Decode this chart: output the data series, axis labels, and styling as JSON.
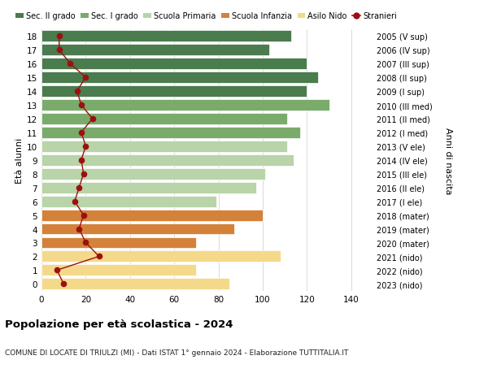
{
  "ages": [
    18,
    17,
    16,
    15,
    14,
    13,
    12,
    11,
    10,
    9,
    8,
    7,
    6,
    5,
    4,
    3,
    2,
    1,
    0
  ],
  "anni_nascita": [
    "2005 (V sup)",
    "2006 (IV sup)",
    "2007 (III sup)",
    "2008 (II sup)",
    "2009 (I sup)",
    "2010 (III med)",
    "2011 (II med)",
    "2012 (I med)",
    "2013 (V ele)",
    "2014 (IV ele)",
    "2015 (III ele)",
    "2016 (II ele)",
    "2017 (I ele)",
    "2018 (mater)",
    "2019 (mater)",
    "2020 (mater)",
    "2021 (nido)",
    "2022 (nido)",
    "2023 (nido)"
  ],
  "bar_values": [
    113,
    103,
    120,
    125,
    120,
    130,
    111,
    117,
    111,
    114,
    101,
    97,
    79,
    100,
    87,
    70,
    108,
    70,
    85
  ],
  "bar_colors": [
    "#4a7c4e",
    "#4a7c4e",
    "#4a7c4e",
    "#4a7c4e",
    "#4a7c4e",
    "#7aab6b",
    "#7aab6b",
    "#7aab6b",
    "#b8d4a8",
    "#b8d4a8",
    "#b8d4a8",
    "#b8d4a8",
    "#b8d4a8",
    "#d4813a",
    "#d4813a",
    "#d4813a",
    "#f5d98a",
    "#f5d98a",
    "#f5d98a"
  ],
  "stranieri_values": [
    8,
    8,
    13,
    20,
    16,
    18,
    23,
    18,
    20,
    18,
    19,
    17,
    15,
    19,
    17,
    20,
    26,
    7,
    10
  ],
  "stranieri_color": "#9b1010",
  "legend_labels": [
    "Sec. II grado",
    "Sec. I grado",
    "Scuola Primaria",
    "Scuola Infanzia",
    "Asilo Nido",
    "Stranieri"
  ],
  "legend_colors": [
    "#4a7c4e",
    "#7aab6b",
    "#b8d4a8",
    "#d4813a",
    "#f5d98a",
    "#9b1010"
  ],
  "ylabel_left": "Età alunni",
  "ylabel_right": "Anni di nascita",
  "title_main": "Popolazione per età scolastica - 2024",
  "title_sub": "COMUNE DI LOCATE DI TRIULZI (MI) - Dati ISTAT 1° gennaio 2024 - Elaborazione TUTTITALIA.IT",
  "xlim": [
    0,
    150
  ],
  "xticks": [
    0,
    20,
    40,
    60,
    80,
    100,
    120,
    140
  ],
  "bg_color": "#ffffff",
  "grid_color": "#cccccc"
}
